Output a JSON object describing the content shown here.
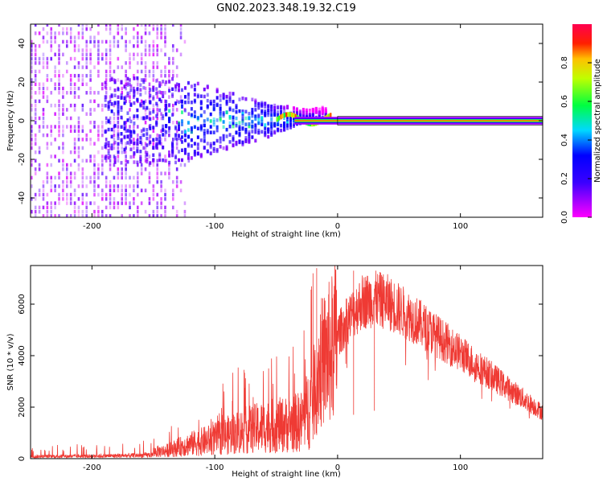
{
  "figure_title": "GN02.2023.348.19.32.C19",
  "colorbar": {
    "label": "Normalized spectral amplitude",
    "ticks": [
      "0.0",
      "0.2",
      "0.4",
      "0.6",
      "0.8"
    ],
    "tick_values": [
      0.0,
      0.2,
      0.4,
      0.6,
      0.8
    ],
    "range": [
      0,
      1
    ]
  },
  "chart_data": [
    {
      "type": "heatmap",
      "title": "",
      "xlabel": "Height of straight line (km)",
      "ylabel": "Frequency (Hz)",
      "xlim": [
        -250,
        167
      ],
      "ylim": [
        -50,
        50
      ],
      "x_ticks": [
        -200,
        -100,
        0,
        100
      ],
      "x_tick_labels": [
        "-200",
        "-100",
        "0",
        "100"
      ],
      "y_ticks": [
        -40,
        -20,
        0,
        20,
        40
      ],
      "y_tick_labels": [
        "-40",
        "-20",
        "0",
        "20",
        "40"
      ],
      "colormap": "hsv-like (magenta→blue→cyan→green→yellow→red)",
      "features": [
        {
          "region": "x -250 to -130",
          "description": "broadband scattered low amplitude (≈0.05–0.15)"
        },
        {
          "region": "x -180 to -40",
          "description": "cluster near 0 Hz, amplitude ≈0.1–0.5, narrowing toward zero height"
        },
        {
          "region": "x -40 to 167",
          "description": "narrow line at ~0 Hz with amplitude ≈1.0 (red core)"
        }
      ]
    },
    {
      "type": "line",
      "title": "",
      "xlabel": "Height of straight line (km)",
      "ylabel": "SNR (10 * v/v)",
      "xlim": [
        -250,
        167
      ],
      "ylim": [
        0,
        7500
      ],
      "x_ticks": [
        -200,
        -100,
        0,
        100
      ],
      "x_tick_labels": [
        "-200",
        "-100",
        "0",
        "100"
      ],
      "y_ticks": [
        0,
        2000,
        4000,
        6000
      ],
      "y_tick_labels": [
        "0",
        "2000",
        "4000",
        "6000"
      ],
      "color": "#ef3a34",
      "series": [
        {
          "x": [
            -250,
            -200,
            -160,
            -140,
            -120,
            -100,
            -80,
            -60,
            -40,
            -30,
            -22,
            -18,
            -15,
            -10,
            -5,
            0,
            10,
            20,
            30,
            40,
            60,
            80,
            100,
            120,
            140,
            167
          ],
          "values": [
            150,
            180,
            230,
            320,
            600,
            800,
            1100,
            1300,
            1400,
            1500,
            2200,
            2800,
            3600,
            3900,
            4200,
            4800,
            5500,
            6100,
            6200,
            6100,
            5500,
            4800,
            4100,
            3400,
            2700,
            1800
          ]
        }
      ],
      "spikes": [
        {
          "x": -20,
          "y": 7200
        },
        {
          "x": -17,
          "y": 7400
        },
        {
          "x": 13,
          "y": 7300
        },
        {
          "x": 30,
          "y": 6600
        }
      ]
    }
  ]
}
